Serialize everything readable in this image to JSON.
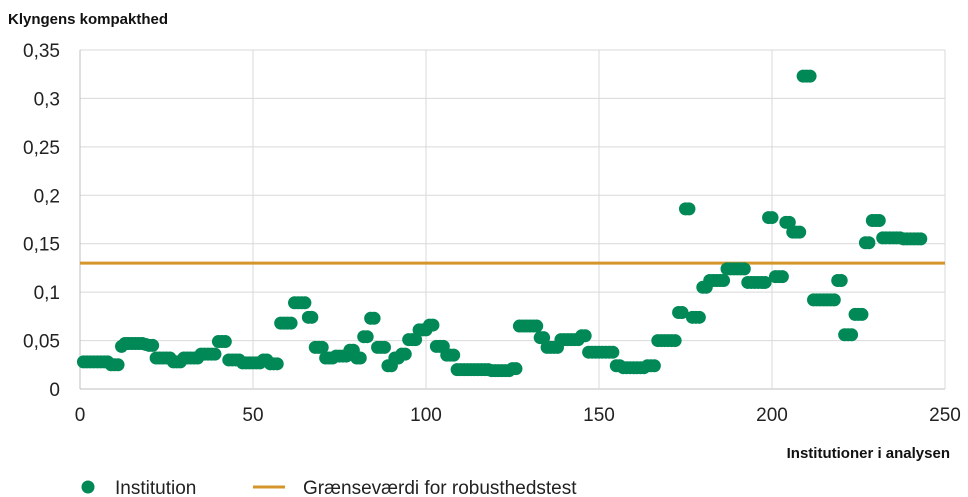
{
  "colors": {
    "points": "#008856",
    "threshold": "#D4962B",
    "grid": "#d9d9d9",
    "axis": "#bfbfbf"
  },
  "legend": {
    "institution": "Institution",
    "threshold": "Grænseværdi for robusthedstest"
  },
  "chart_data": {
    "type": "scatter",
    "title": "",
    "ylabel": "Klyngens kompakthed",
    "xlabel": "Institutioner i analysen",
    "xlim": [
      0,
      250
    ],
    "ylim": [
      0,
      0.35
    ],
    "x_ticks": [
      0,
      50,
      100,
      150,
      200,
      250
    ],
    "x_tick_labels": [
      "0",
      "50",
      "100",
      "150",
      "200",
      "250"
    ],
    "y_ticks": [
      0,
      0.05,
      0.1,
      0.15,
      0.2,
      0.25,
      0.3,
      0.35
    ],
    "y_tick_labels": [
      "0",
      "0,05",
      "0,1",
      "0,15",
      "0,2",
      "0,25",
      "0,3",
      "0,35"
    ],
    "grid": true,
    "legend_position": "bottom-left",
    "threshold": 0.13,
    "series": [
      {
        "name": "Institution",
        "marker": "circle",
        "y": [
          0.028,
          0.028,
          0.028,
          0.028,
          0.028,
          0.028,
          0.028,
          0.028,
          0.025,
          0.025,
          0.025,
          0.044,
          0.047,
          0.047,
          0.047,
          0.047,
          0.047,
          0.047,
          0.046,
          0.045,
          0.045,
          0.032,
          0.032,
          0.032,
          0.032,
          0.032,
          0.028,
          0.028,
          0.028,
          0.032,
          0.032,
          0.032,
          0.032,
          0.032,
          0.036,
          0.036,
          0.036,
          0.036,
          0.036,
          0.049,
          0.049,
          0.049,
          0.03,
          0.03,
          0.03,
          0.03,
          0.027,
          0.027,
          0.027,
          0.027,
          0.027,
          0.027,
          0.03,
          0.03,
          0.026,
          0.026,
          0.026,
          0.068,
          0.068,
          0.068,
          0.068,
          0.089,
          0.089,
          0.089,
          0.089,
          0.074,
          0.074,
          0.043,
          0.043,
          0.043,
          0.032,
          0.032,
          0.032,
          0.034,
          0.034,
          0.034,
          0.034,
          0.04,
          0.04,
          0.032,
          0.032,
          0.054,
          0.054,
          0.073,
          0.073,
          0.043,
          0.043,
          0.043,
          0.024,
          0.024,
          0.032,
          0.032,
          0.036,
          0.036,
          0.051,
          0.051,
          0.051,
          0.061,
          0.061,
          0.061,
          0.066,
          0.066,
          0.044,
          0.044,
          0.044,
          0.035,
          0.035,
          0.035,
          0.02,
          0.02,
          0.02,
          0.02,
          0.02,
          0.02,
          0.02,
          0.02,
          0.02,
          0.02,
          0.019,
          0.019,
          0.019,
          0.019,
          0.019,
          0.019,
          0.021,
          0.021,
          0.065,
          0.065,
          0.065,
          0.065,
          0.065,
          0.065,
          0.053,
          0.053,
          0.043,
          0.043,
          0.043,
          0.043,
          0.051,
          0.051,
          0.051,
          0.051,
          0.051,
          0.051,
          0.055,
          0.055,
          0.038,
          0.038,
          0.038,
          0.038,
          0.038,
          0.038,
          0.038,
          0.038,
          0.024,
          0.024,
          0.022,
          0.022,
          0.022,
          0.022,
          0.022,
          0.022,
          0.022,
          0.024,
          0.024,
          0.024,
          0.05,
          0.05,
          0.05,
          0.05,
          0.05,
          0.05,
          0.079,
          0.079,
          0.186,
          0.186,
          0.074,
          0.074,
          0.074,
          0.105,
          0.105,
          0.112,
          0.112,
          0.112,
          0.112,
          0.112,
          0.124,
          0.124,
          0.124,
          0.124,
          0.124,
          0.124,
          0.11,
          0.11,
          0.11,
          0.11,
          0.11,
          0.11,
          0.177,
          0.177,
          0.116,
          0.116,
          0.116,
          0.172,
          0.172,
          0.162,
          0.162,
          0.162,
          0.323,
          0.323,
          0.323,
          0.092,
          0.092,
          0.092,
          0.092,
          0.092,
          0.092,
          0.092,
          0.112,
          0.112,
          0.056,
          0.056,
          0.056,
          0.077,
          0.077,
          0.077,
          0.151,
          0.151,
          0.174,
          0.174,
          0.174,
          0.156,
          0.156,
          0.156,
          0.156,
          0.156,
          0.156,
          0.155,
          0.155,
          0.155,
          0.155,
          0.155,
          0.155
        ]
      }
    ]
  }
}
